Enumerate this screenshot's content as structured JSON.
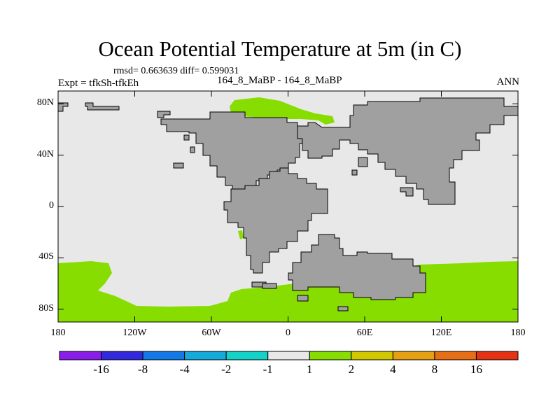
{
  "title": "Ocean Potential Temperature at 5m (in C)",
  "stats": "rmsd= 0.663639 diff= 0.599031",
  "experiment": "Expt = tfkSh-tfkEh",
  "case_label": "164_8_MaBP - 164_8_MaBP",
  "season": "ANN",
  "map": {
    "lon_range": [
      -180,
      180
    ],
    "lat_range": [
      -90,
      90
    ],
    "y_ticks": [
      {
        "label": "80N",
        "lat": 80
      },
      {
        "label": "40N",
        "lat": 40
      },
      {
        "label": "0",
        "lat": 0
      },
      {
        "label": "40S",
        "lat": -40
      },
      {
        "label": "80S",
        "lat": -80
      }
    ],
    "x_ticks": [
      {
        "label": "180",
        "lon": -180
      },
      {
        "label": "120W",
        "lon": -120
      },
      {
        "label": "60W",
        "lon": -60
      },
      {
        "label": "0",
        "lon": 0
      },
      {
        "label": "60E",
        "lon": 60
      },
      {
        "label": "120E",
        "lon": 120
      },
      {
        "label": "180",
        "lon": 180
      }
    ],
    "colors": {
      "land": "#a0a0a0",
      "near_zero": "#e8e8e8",
      "warm_1_2": "#88dd00"
    }
  },
  "colorbar": {
    "colors": [
      "#8a1ee8",
      "#3228dc",
      "#1478e6",
      "#14aadc",
      "#14d2c8",
      "#e8e8e8",
      "#88dd00",
      "#d2c800",
      "#e6a014",
      "#e66e14",
      "#e63214"
    ],
    "labels": [
      "-16",
      "-8",
      "-4",
      "-2",
      "-1",
      "1",
      "2",
      "4",
      "8",
      "16"
    ]
  }
}
